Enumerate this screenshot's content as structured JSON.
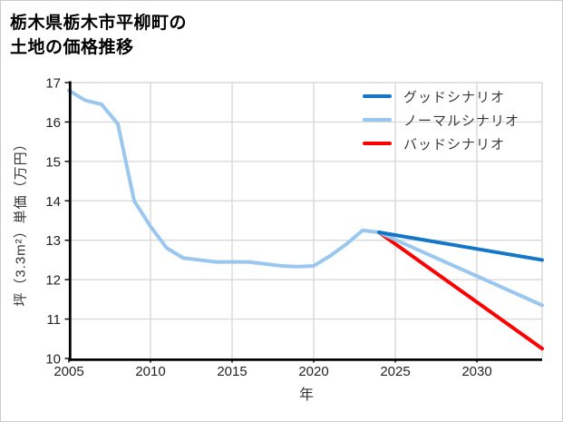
{
  "title": {
    "line1": "栃木県栃木市平柳町の",
    "line2": "土地の価格推移"
  },
  "chart_data": {
    "type": "line",
    "xlabel": "年",
    "ylabel": "坪（3.3m²）単価（万円）",
    "xlim": [
      2005,
      2034
    ],
    "ylim": [
      10,
      17
    ],
    "xticks": [
      2005,
      2010,
      2015,
      2020,
      2025,
      2030
    ],
    "yticks": [
      10,
      11,
      12,
      13,
      14,
      15,
      16,
      17
    ],
    "grid": true,
    "legend_position": "top-right-inside",
    "colors": {
      "grid": "#d9d9d9",
      "axis": "#000000",
      "tick_label": "#242424",
      "history": "#99c7ef",
      "good": "#1476c8",
      "normal": "#99c7ef",
      "bad": "#fe0000"
    },
    "history": {
      "x": [
        2005,
        2006,
        2007,
        2008,
        2009,
        2010,
        2011,
        2012,
        2013,
        2014,
        2015,
        2016,
        2017,
        2018,
        2019,
        2020,
        2021,
        2022,
        2023,
        2024
      ],
      "y": [
        16.8,
        16.55,
        16.45,
        15.95,
        14.0,
        13.35,
        12.8,
        12.55,
        12.5,
        12.45,
        12.45,
        12.45,
        12.4,
        12.35,
        12.33,
        12.35,
        12.6,
        12.9,
        13.25,
        13.2
      ]
    },
    "scenarios": [
      {
        "label": "グッドシナリオ",
        "color": "#1476c8",
        "x": [
          2024,
          2034
        ],
        "y": [
          13.2,
          12.5
        ]
      },
      {
        "label": "ノーマルシナリオ",
        "color": "#99c7ef",
        "x": [
          2024,
          2034
        ],
        "y": [
          13.2,
          11.35
        ]
      },
      {
        "label": "バッドシナリオ",
        "color": "#fe0000",
        "x": [
          2024,
          2034
        ],
        "y": [
          13.2,
          10.25
        ]
      }
    ]
  }
}
